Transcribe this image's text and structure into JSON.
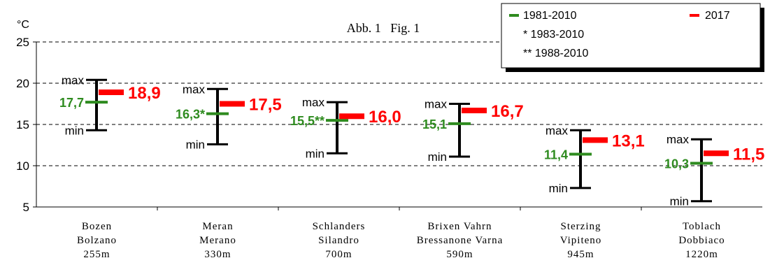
{
  "chart_data": {
    "type": "range",
    "title": "Abb. 1   Fig. 1",
    "ylabel": "°C",
    "ylim": [
      5,
      25
    ],
    "yticks": [
      5,
      10,
      15,
      20,
      25
    ],
    "grid": "horizontal dashed",
    "legend": {
      "placement": "top-right",
      "entries": [
        {
          "label": "1981-2010",
          "color": "#2e8b1f"
        },
        {
          "label": "2017",
          "color": "#ff0000"
        }
      ],
      "notes": [
        "* 1983-2010",
        "** 1988-2010"
      ]
    },
    "colors": {
      "reference": "#2e8b1f",
      "current": "#ff0000",
      "range": "#000000"
    },
    "range_labels": {
      "max": "max",
      "min": "min"
    },
    "stations": [
      {
        "name_de": "Bozen",
        "name_it": "Bolzano",
        "altitude": "255m",
        "max": 20.4,
        "min": 14.3,
        "avg_1981_2010": 17.7,
        "avg_label": "17,7",
        "value_2017": 18.9,
        "value_label": "18,9"
      },
      {
        "name_de": "Meran",
        "name_it": "Merano",
        "altitude": "330m",
        "max": 19.3,
        "min": 12.6,
        "avg_1981_2010": 16.3,
        "avg_label": "16,3*",
        "value_2017": 17.5,
        "value_label": "17,5"
      },
      {
        "name_de": "Schlanders",
        "name_it": "Silandro",
        "altitude": "700m",
        "max": 17.7,
        "min": 11.5,
        "avg_1981_2010": 15.5,
        "avg_label": "15,5**",
        "value_2017": 16.0,
        "value_label": "16,0"
      },
      {
        "name_de": "Brixen Vahrn",
        "name_it": "Bressanone Varna",
        "altitude": "590m",
        "max": 17.5,
        "min": 11.1,
        "avg_1981_2010": 15.1,
        "avg_label": "15,1",
        "value_2017": 16.7,
        "value_label": "16,7"
      },
      {
        "name_de": "Sterzing",
        "name_it": "Vipiteno",
        "altitude": "945m",
        "max": 14.3,
        "min": 7.3,
        "avg_1981_2010": 11.4,
        "avg_label": "11,4",
        "value_2017": 13.1,
        "value_label": "13,1"
      },
      {
        "name_de": "Toblach",
        "name_it": "Dobbiaco",
        "altitude": "1220m",
        "max": 13.2,
        "min": 5.7,
        "avg_1981_2010": 10.3,
        "avg_label": "10,3",
        "value_2017": 11.5,
        "value_label": "11,5"
      }
    ]
  }
}
